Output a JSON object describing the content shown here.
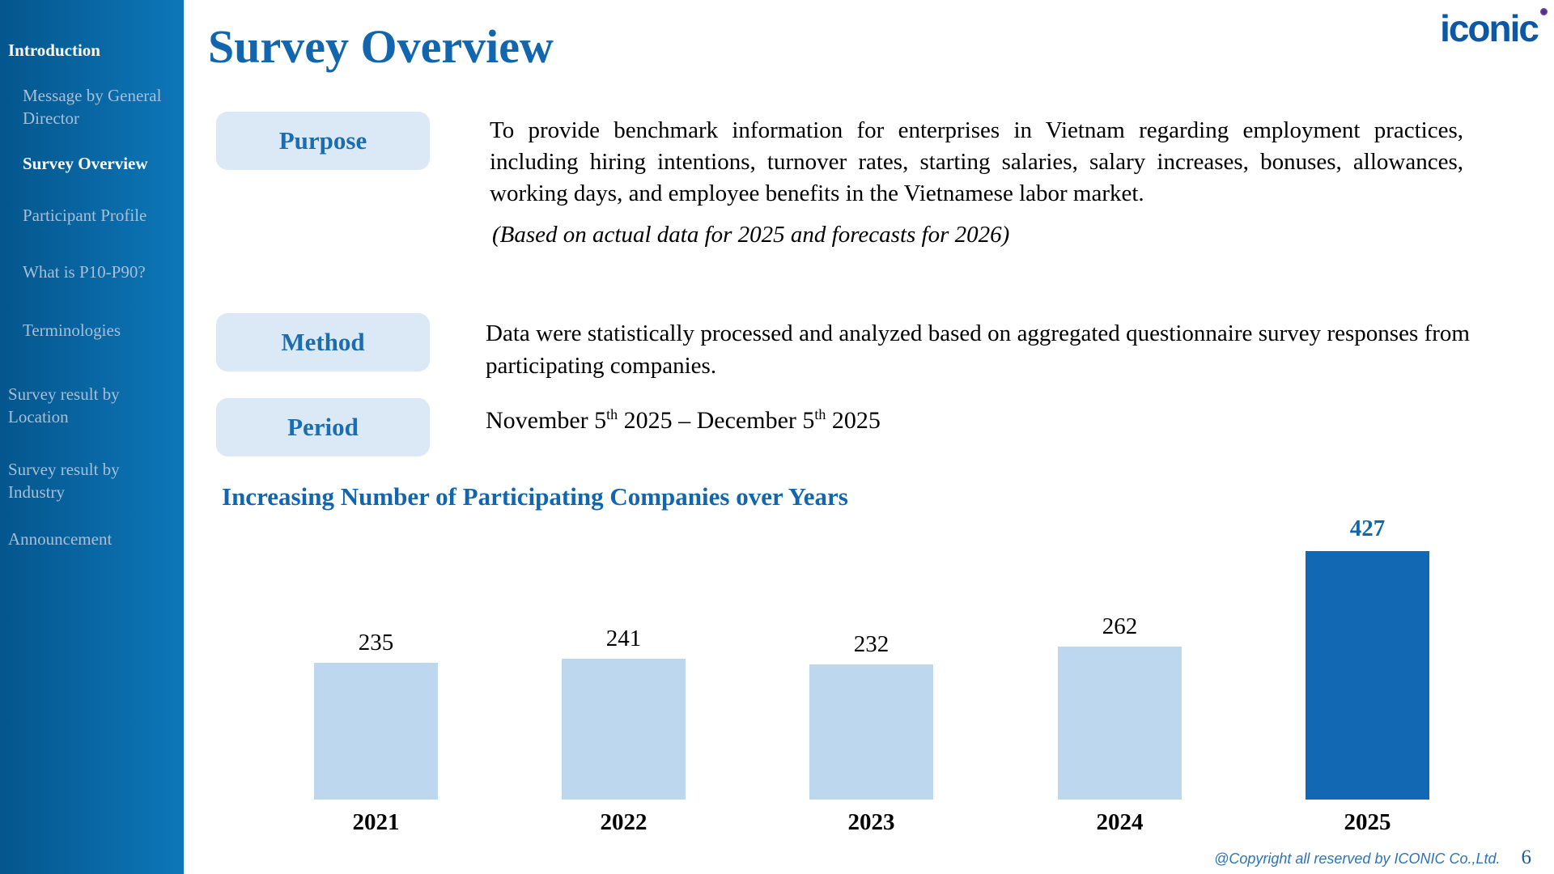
{
  "page": {
    "title": "Survey Overview",
    "number": "6",
    "copyright": "@Copyright all reserved by ICONIC Co.,Ltd."
  },
  "logo": {
    "text": "iconic"
  },
  "sidebar": {
    "items": [
      {
        "label": "Introduction"
      },
      {
        "label": "Message by General Director"
      },
      {
        "label": "Survey Overview"
      },
      {
        "label": "Participant Profile"
      },
      {
        "label": "What is P10-P90?"
      },
      {
        "label": "Terminologies"
      },
      {
        "label": "Survey result by Location"
      },
      {
        "label": "Survey result by Industry"
      },
      {
        "label": "Announcement"
      }
    ]
  },
  "sections": {
    "purpose": {
      "label": "Purpose",
      "body": "To provide benchmark information for enterprises in Vietnam regarding employment practices, including hiring intentions, turnover rates, starting salaries, salary increases, bonuses, allowances, working days, and employee benefits in the Vietnamese labor market.",
      "note": "(Based on actual data for 2025 and forecasts for 2026)"
    },
    "method": {
      "label": "Method",
      "body": "Data were statistically processed and analyzed based on aggregated questionnaire survey responses from participating companies."
    },
    "period": {
      "label": "Period",
      "p1": "November 5",
      "sup1": "th",
      "p2": " 2025 – December 5",
      "sup2": "th",
      "p3": " 2025"
    }
  },
  "chart_data": {
    "type": "bar",
    "title": "Increasing Number of Participating Companies over Years",
    "categories": [
      "2021",
      "2022",
      "2023",
      "2024",
      "2025"
    ],
    "values": [
      235,
      241,
      232,
      262,
      427
    ],
    "highlight_index": 4,
    "bar_color": "#bdd7ee",
    "highlight_color": "#1268b3",
    "ylim": [
      0,
      450
    ],
    "grid": false,
    "legend": false
  },
  "colors": {
    "accent_blue": "#1266ad",
    "label_box_bg": "#dbe9f6",
    "label_text_blue": "#1c6cb0",
    "bar_light": "#bdd7ee",
    "bar_highlight": "#1268b3",
    "sidebar_gradient_start": "#04568d",
    "sidebar_gradient_end": "#0d77b8",
    "sidebar_inactive_text": "#a9bfd6",
    "footer_blue": "#2e74b5",
    "logo_blue": "#0c58a4",
    "logo_dot_purple": "#5b2d8e"
  }
}
